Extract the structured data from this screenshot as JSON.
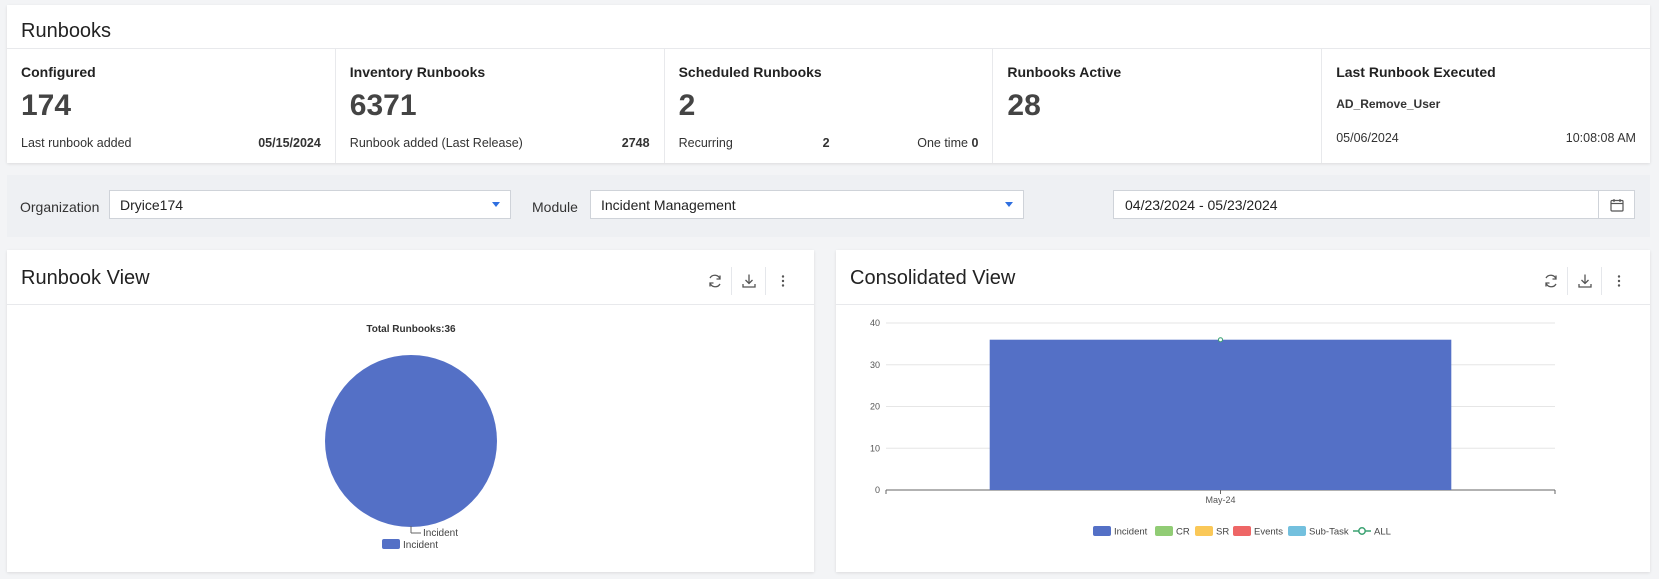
{
  "page": {
    "title": "Runbooks"
  },
  "stats": {
    "configured": {
      "label": "Configured",
      "value": "174",
      "sub_label": "Last runbook added",
      "sub_value": "05/15/2024"
    },
    "inventory": {
      "label": "Inventory Runbooks",
      "value": "6371",
      "sub_label": "Runbook added (Last Release)",
      "sub_value": "2748"
    },
    "scheduled": {
      "label": "Scheduled Runbooks",
      "value": "2",
      "recurring_label": "Recurring",
      "recurring_value": "2",
      "one_time_label": "One time",
      "one_time_value": "0"
    },
    "active": {
      "label": "Runbooks Active",
      "value": "28"
    },
    "last_executed": {
      "label": "Last Runbook Executed",
      "name": "AD_Remove_User",
      "date": "05/06/2024",
      "time": "10:08:08 AM"
    }
  },
  "filters": {
    "organization_label": "Organization",
    "organization_value": "Dryice174",
    "module_label": "Module",
    "module_value": "Incident Management",
    "date_range": "04/23/2024 - 05/23/2024"
  },
  "icons": {
    "refresh": "refresh-icon",
    "download": "download-icon",
    "more": "more-vertical-icon",
    "calendar": "calendar-icon",
    "dropdown": "caret-down-icon"
  },
  "colors": {
    "incident": "#5470c6",
    "cr": "#91cc75",
    "sr": "#fac858",
    "events": "#ee6666",
    "subtask": "#73c0de",
    "all": "#3ba272",
    "caret": "#2f6fe0"
  },
  "runbook_view": {
    "title": "Runbook View"
  },
  "consolidated_view": {
    "title": "Consolidated View"
  },
  "chart_data": [
    {
      "type": "pie",
      "title": "Total Runbooks:36",
      "slices": [
        {
          "name": "Incident",
          "value": 36
        }
      ],
      "legend": [
        "Incident"
      ],
      "legend_position": "bottom"
    },
    {
      "type": "bar",
      "categories": [
        "May-24"
      ],
      "series": [
        {
          "name": "Incident",
          "values": [
            36
          ]
        },
        {
          "name": "CR",
          "values": [
            0
          ]
        },
        {
          "name": "SR",
          "values": [
            0
          ]
        },
        {
          "name": "Events",
          "values": [
            0
          ]
        },
        {
          "name": "Sub-Task",
          "values": [
            0
          ]
        },
        {
          "name": "ALL",
          "type": "line",
          "values": [
            36
          ]
        }
      ],
      "yticks": [
        "0",
        "10",
        "20",
        "30",
        "40"
      ],
      "ylim": [
        0,
        40
      ],
      "grid": true,
      "legend_position": "bottom"
    }
  ]
}
